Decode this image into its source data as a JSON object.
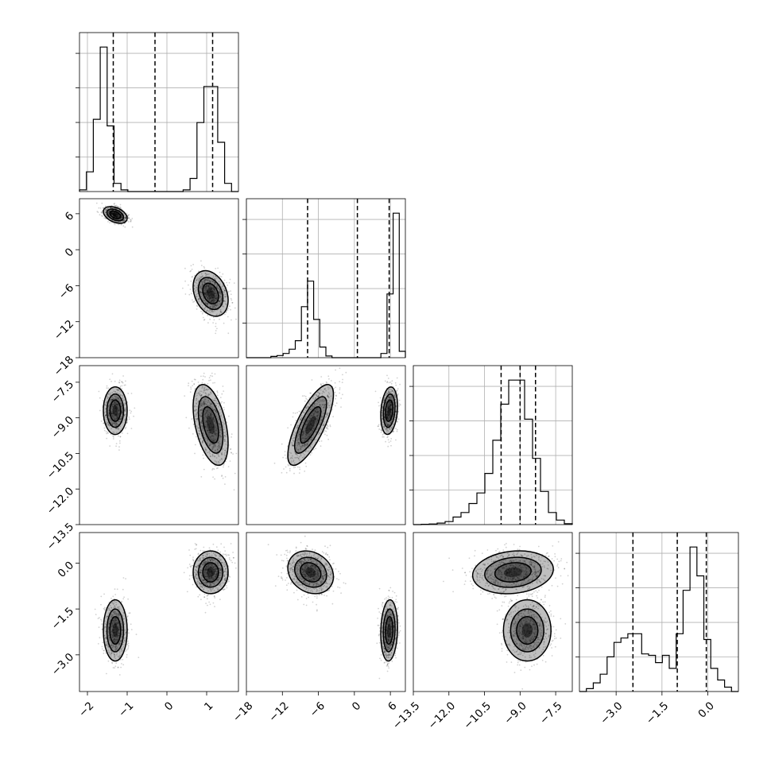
{
  "chart_data": {
    "type": "corner",
    "grid": true,
    "colors": {
      "line": "#000000",
      "grid": "#b0b0b0",
      "density": "#000000"
    },
    "parameters": [
      {
        "range": [
          -2.2,
          1.8
        ],
        "ticks": [
          -2,
          -1,
          0,
          1
        ],
        "tick_labels": [
          "−2",
          "−1",
          "0",
          "1"
        ],
        "quantiles": [
          -1.35,
          -0.3,
          1.15
        ]
      },
      {
        "range": [
          -18,
          8.5
        ],
        "ticks": [
          -18,
          -12,
          -6,
          0,
          6
        ],
        "tick_labels": [
          "−18",
          "−12",
          "−6",
          "0",
          "6"
        ],
        "quantiles": [
          -7.8,
          0.5,
          5.8
        ]
      },
      {
        "range": [
          -13.5,
          -6.8
        ],
        "ticks": [
          -13.5,
          -12.0,
          -10.5,
          -9.0,
          -7.5
        ],
        "tick_labels": [
          "−13.5",
          "−12.0",
          "−10.5",
          "−9.0",
          "−7.5"
        ],
        "quantiles": [
          -9.8,
          -9.0,
          -8.35
        ]
      },
      {
        "range": [
          -4.2,
          1.0
        ],
        "ticks": [
          -3.0,
          -1.5,
          0.0
        ],
        "tick_labels": [
          "−3.0",
          "−1.5",
          "0.0"
        ],
        "quantiles": [
          -2.45,
          -1.0,
          -0.05
        ]
      }
    ],
    "histograms": [
      {
        "values": [
          0.5,
          6,
          22,
          44,
          20,
          2.5,
          0.5,
          0,
          0,
          0,
          0,
          0,
          0,
          0,
          0,
          0.5,
          4,
          21,
          32,
          32,
          15,
          2.5,
          0
        ]
      },
      {
        "values": [
          0,
          0,
          0,
          0,
          0.3,
          0.5,
          1,
          2,
          4,
          12,
          18,
          9,
          2.5,
          0.4,
          0,
          0,
          0,
          0,
          0,
          0,
          0,
          0,
          1,
          15,
          34,
          1.5
        ]
      },
      {
        "values": [
          0,
          0.1,
          0.2,
          0.5,
          1,
          2.5,
          4,
          7,
          10.5,
          17,
          28,
          40,
          48,
          48,
          35,
          22,
          11,
          4,
          1.5,
          0.3
        ]
      },
      {
        "values": [
          0,
          1,
          3,
          6,
          12,
          17,
          18.5,
          20,
          20,
          13,
          12.5,
          10,
          12.5,
          8,
          20,
          35,
          50,
          40,
          18,
          8,
          4,
          1.5,
          0
        ]
      }
    ],
    "clusters": [
      {
        "mean": [
          -1.3,
          5.8,
          -8.7,
          -2.2
        ],
        "sd": [
          0.15,
          0.7,
          0.5,
          0.5
        ],
        "weight": 0.44,
        "c01": -0.4,
        "c02": 0,
        "c03": 0,
        "c12": 0.2,
        "c13": 0.1,
        "c23": 0
      },
      {
        "mean": [
          1.1,
          -7.3,
          -9.3,
          -0.3
        ],
        "sd": [
          0.22,
          1.9,
          0.85,
          0.35
        ],
        "weight": 0.56,
        "c01": -0.3,
        "c02": -0.45,
        "c03": 0,
        "c12": 0.75,
        "c13": -0.2,
        "c23": 0.15
      }
    ]
  }
}
